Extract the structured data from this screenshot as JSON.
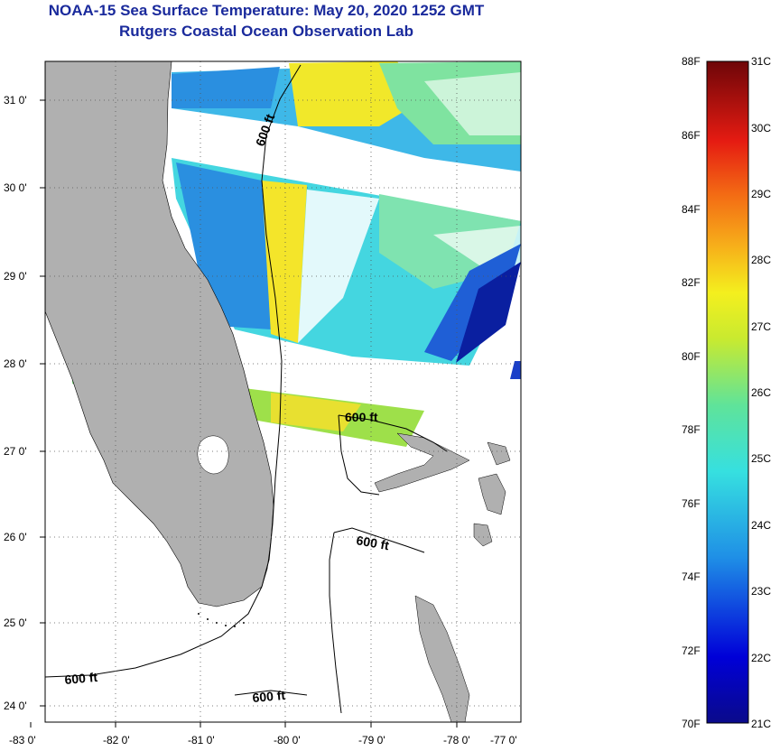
{
  "title": {
    "line1": "NOAA-15 Sea Surface Temperature:  May 20, 2020 1252 GMT",
    "line2": "Rutgers Coastal Ocean Observation Lab"
  },
  "map": {
    "lon_ticks": [
      "-83 0'",
      "-82 0'",
      "-81 0'",
      "-80 0'",
      "-79 0'",
      "-78 0'",
      "-77 0'"
    ],
    "lat_ticks": [
      "31 0'",
      "30 0'",
      "29 0'",
      "28 0'",
      "27 0'",
      "26 0'",
      "25 0'",
      "24 0'"
    ],
    "contour_labels": [
      "600 ft",
      "600 ft",
      "600 ft",
      "600 ft",
      "600 ft"
    ],
    "colors": {
      "land": "#b0b0b0",
      "cloud": "#ffffff",
      "frame": "#000000"
    }
  },
  "colorbar": {
    "fahrenheit": [
      "88F",
      "86F",
      "84F",
      "82F",
      "80F",
      "78F",
      "76F",
      "74F",
      "72F",
      "70F"
    ],
    "celsius": [
      "31C",
      "30C",
      "29C",
      "28C",
      "27C",
      "26C",
      "25C",
      "24C",
      "23C",
      "22C",
      "21C"
    ],
    "gradient": [
      "#0a0a8a",
      "#0000d8",
      "#1f6fe0",
      "#2bb6e8",
      "#34e0e0",
      "#5fe39a",
      "#b7e83b",
      "#f4ef1e",
      "#f7b01a",
      "#f36a14",
      "#e51b12",
      "#b2080a",
      "#6e0608"
    ]
  }
}
